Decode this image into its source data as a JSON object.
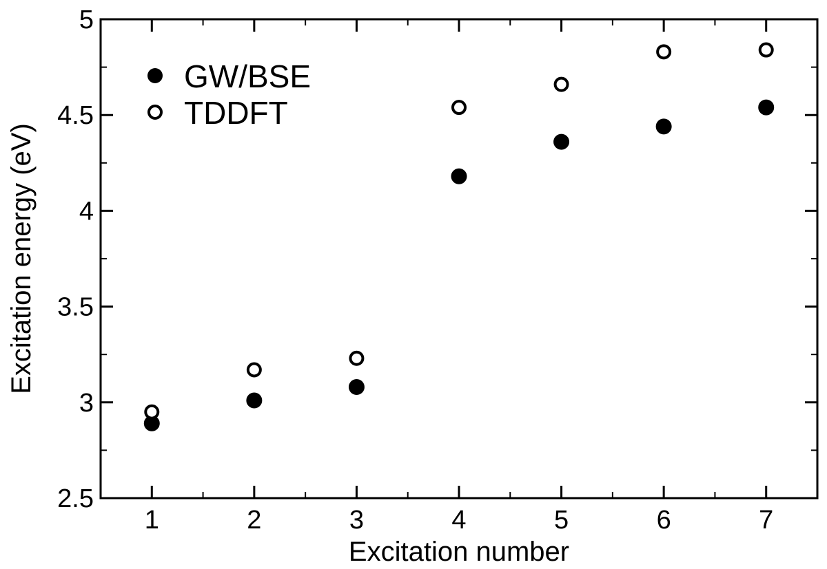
{
  "chart_data": {
    "type": "scatter",
    "title": "",
    "xlabel": "Excitation number",
    "ylabel": "Excitation energy (eV)",
    "xlim": [
      0.5,
      7.5
    ],
    "ylim": [
      2.5,
      5
    ],
    "x_ticks": [
      1,
      2,
      3,
      4,
      5,
      6,
      7
    ],
    "x_tick_labels": [
      "1",
      "2",
      "3",
      "4",
      "5",
      "6",
      "7"
    ],
    "y_ticks": [
      2.5,
      3,
      3.5,
      4,
      4.5,
      5
    ],
    "y_tick_labels": [
      "2.5",
      "3",
      "3.5",
      "4",
      "4.5",
      "5"
    ],
    "grid": false,
    "legend_position": "top-left",
    "series": [
      {
        "name": "GW/BSE",
        "marker": "filled-circle",
        "color": "#000000",
        "x": [
          1,
          2,
          3,
          4,
          5,
          6,
          7
        ],
        "y": [
          2.89,
          3.01,
          3.08,
          4.18,
          4.36,
          4.44,
          4.54
        ]
      },
      {
        "name": "TDDFT",
        "marker": "open-circle",
        "color": "#000000",
        "x": [
          1,
          2,
          3,
          4,
          5,
          6,
          7
        ],
        "y": [
          2.95,
          3.17,
          3.23,
          4.54,
          4.66,
          4.83,
          4.84
        ]
      }
    ]
  }
}
